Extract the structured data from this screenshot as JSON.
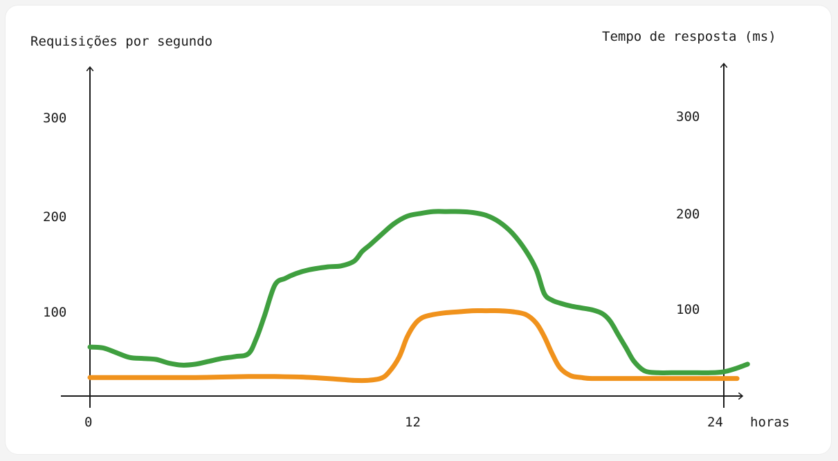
{
  "chart_data": {
    "type": "line",
    "x_label": "horas",
    "y_left_label": "Requisições por segundo",
    "y_right_label": "Tempo de resposta (ms)",
    "x_ticks": [
      "0",
      "12",
      "24"
    ],
    "y_left_ticks": [
      "100",
      "200",
      "300"
    ],
    "y_right_ticks": [
      "100",
      "200",
      "300"
    ],
    "x_range": [
      0,
      24
    ],
    "y_range": [
      0,
      300
    ],
    "grid": false,
    "series": [
      {
        "axis": "left",
        "color": "#3f9f3f",
        "x": [
          0,
          0.5,
          1,
          1.5,
          2,
          2.5,
          3,
          3.5,
          4,
          4.5,
          5,
          5.5,
          6,
          6.3,
          6.6,
          7,
          7.4,
          7.8,
          8.3,
          9,
          9.5,
          10,
          10.3,
          10.6,
          11,
          11.5,
          12,
          12.5,
          13,
          13.5,
          14,
          14.5,
          15,
          15.5,
          16,
          16.5,
          16.9,
          17.2,
          17.5,
          17.8,
          18.2,
          18.6,
          19,
          19.4,
          19.7,
          20,
          20.3,
          20.6,
          21,
          21.5,
          22,
          22.5,
          23,
          23.5,
          24,
          24.4,
          24.9
        ],
        "y": [
          63,
          62,
          57,
          52,
          51,
          50,
          46,
          44,
          45,
          48,
          51,
          53,
          56,
          72,
          95,
          128,
          135,
          140,
          144,
          147,
          148,
          153,
          163,
          170,
          180,
          192,
          200,
          203,
          205,
          205,
          205,
          204,
          201,
          194,
          182,
          164,
          144,
          119,
          112,
          109,
          106,
          104,
          102,
          98,
          90,
          76,
          62,
          48,
          38,
          36,
          36,
          36,
          36,
          36,
          37,
          40,
          45
        ]
      },
      {
        "axis": "left",
        "color": "#f0921c",
        "x": [
          0,
          1,
          2,
          3,
          4,
          5,
          6,
          7,
          8,
          9,
          9.5,
          10,
          10.5,
          11,
          11.3,
          11.7,
          12,
          12.3,
          12.6,
          13,
          13.5,
          14,
          14.5,
          15,
          15.5,
          16,
          16.5,
          16.9,
          17.2,
          17.5,
          17.8,
          18.2,
          18.6,
          19,
          20,
          21,
          22,
          23,
          24,
          24.5
        ],
        "y": [
          31,
          31,
          31,
          31,
          31,
          31.5,
          32,
          32,
          31.5,
          30,
          29,
          28,
          28,
          30,
          36,
          52,
          73,
          87,
          94,
          97,
          99,
          100,
          101,
          101,
          101,
          100,
          97,
          88,
          74,
          56,
          41,
          33,
          31,
          30,
          30,
          30,
          30,
          30,
          30,
          30
        ]
      }
    ]
  }
}
